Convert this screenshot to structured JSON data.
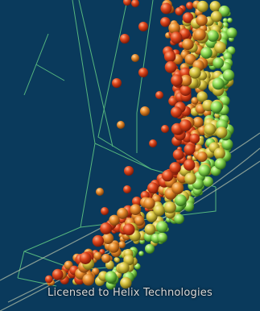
{
  "watermark": {
    "text": "Licensed to  Helix Technologies"
  },
  "palette": {
    "background": "#0a3a5c",
    "frame_lines": "#6fe08a",
    "glow_lines": "#d7ddb8",
    "sphere_hot": "#e0471c",
    "sphere_warm": "#e68a2a",
    "sphere_mid": "#d6c440",
    "sphere_cool": "#8fdc54"
  }
}
